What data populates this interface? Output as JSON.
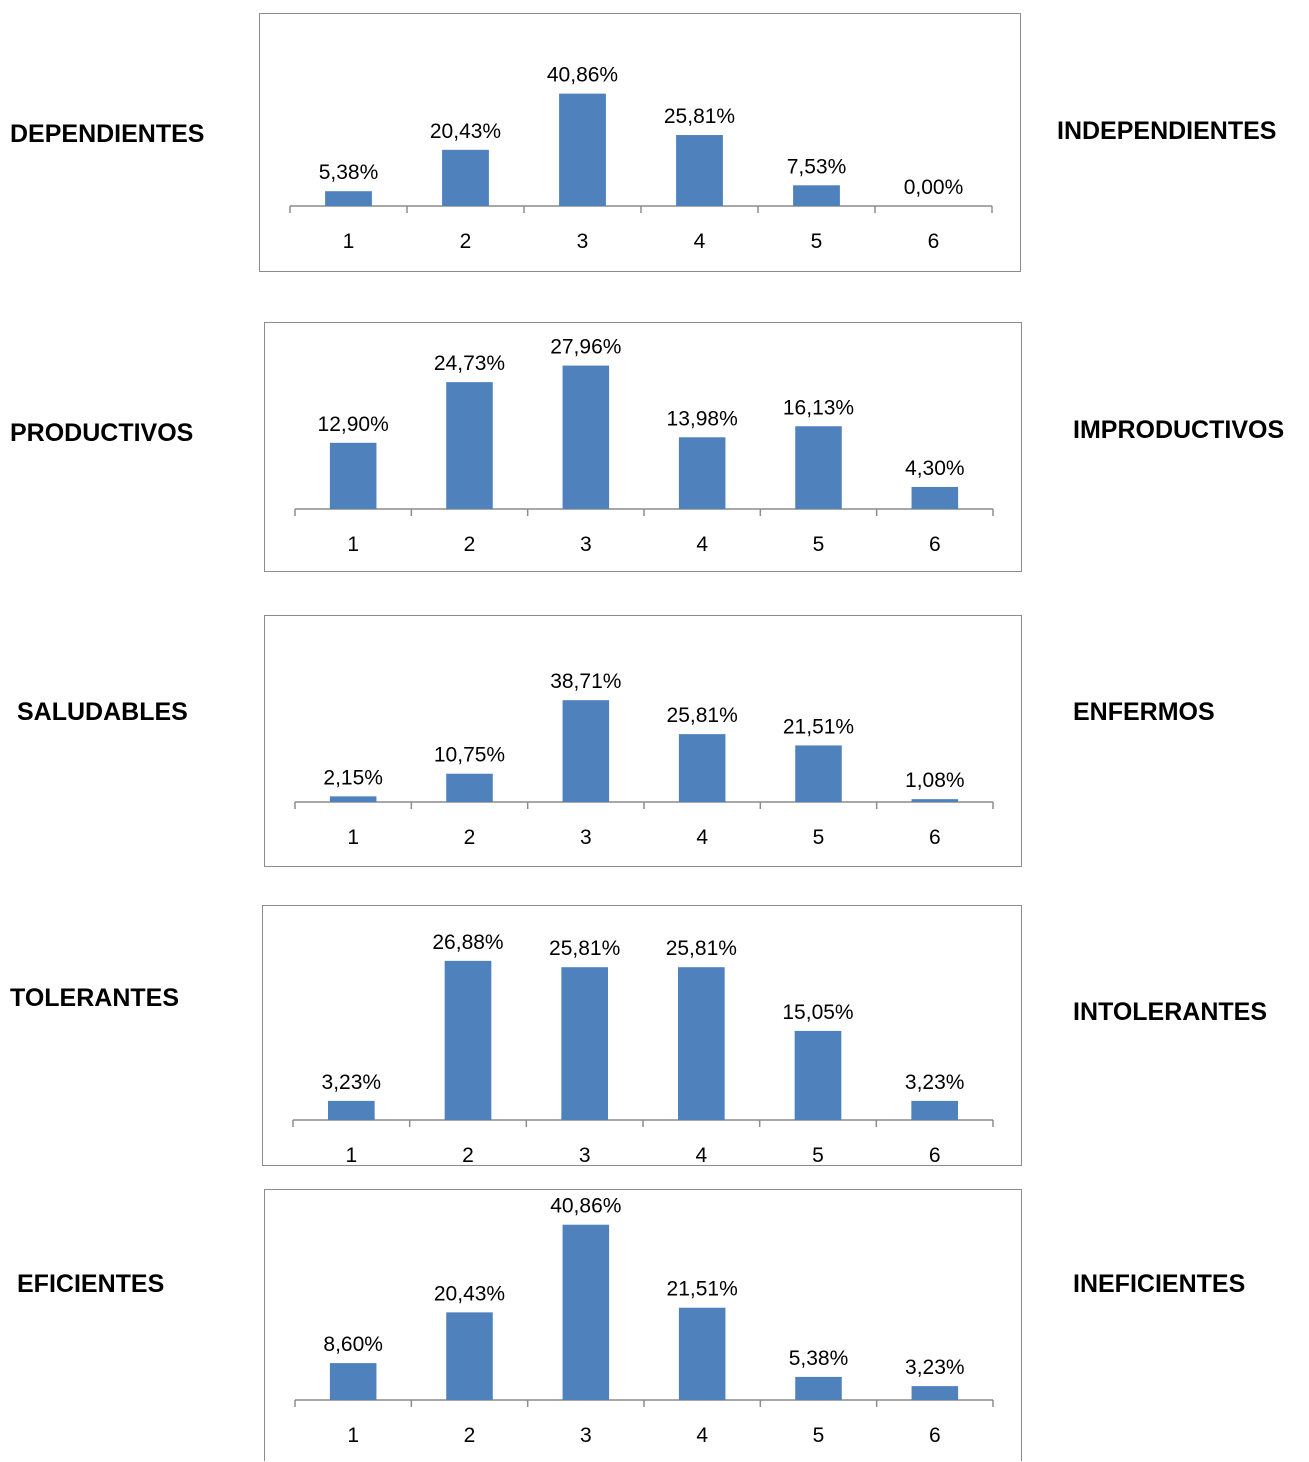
{
  "chart_data": [
    {
      "type": "bar",
      "categories": [
        "1",
        "2",
        "3",
        "4",
        "5",
        "6"
      ],
      "values": [
        5.38,
        20.43,
        40.86,
        25.81,
        7.53,
        0.0
      ],
      "value_labels": [
        "5,38%",
        "20,43%",
        "40,86%",
        "25,81%",
        "7,53%",
        "0,00%"
      ],
      "left_label": "DEPENDIENTES",
      "right_label": "INDEPENDIENTES",
      "bar_color": "#4f81bd"
    },
    {
      "type": "bar",
      "categories": [
        "1",
        "2",
        "3",
        "4",
        "5",
        "6"
      ],
      "values": [
        12.9,
        24.73,
        27.96,
        13.98,
        16.13,
        4.3
      ],
      "value_labels": [
        "12,90%",
        "24,73%",
        "27,96%",
        "13,98%",
        "16,13%",
        "4,30%"
      ],
      "left_label": "PRODUCTIVOS",
      "right_label": "IMPRODUCTIVOS",
      "bar_color": "#4f81bd"
    },
    {
      "type": "bar",
      "categories": [
        "1",
        "2",
        "3",
        "4",
        "5",
        "6"
      ],
      "values": [
        2.15,
        10.75,
        38.71,
        25.81,
        21.51,
        1.08
      ],
      "value_labels": [
        "2,15%",
        "10,75%",
        "38,71%",
        "25,81%",
        "21,51%",
        "1,08%"
      ],
      "left_label": "SALUDABLES",
      "right_label": "ENFERMOS",
      "bar_color": "#4f81bd"
    },
    {
      "type": "bar",
      "categories": [
        "1",
        "2",
        "3",
        "4",
        "5",
        "6"
      ],
      "values": [
        3.23,
        26.88,
        25.81,
        25.81,
        15.05,
        3.23
      ],
      "value_labels": [
        "3,23%",
        "26,88%",
        "25,81%",
        "25,81%",
        "15,05%",
        "3,23%"
      ],
      "left_label": "TOLERANTES",
      "right_label": "INTOLERANTES",
      "bar_color": "#4f81bd"
    },
    {
      "type": "bar",
      "categories": [
        "1",
        "2",
        "3",
        "4",
        "5",
        "6"
      ],
      "values": [
        8.6,
        20.43,
        40.86,
        21.51,
        5.38,
        3.23
      ],
      "value_labels": [
        "8,60%",
        "20,43%",
        "40,86%",
        "21,51%",
        "5,38%",
        "3,23%"
      ],
      "left_label": "EFICIENTES",
      "right_label": "INEFICIENTES",
      "bar_color": "#4f81bd"
    }
  ]
}
